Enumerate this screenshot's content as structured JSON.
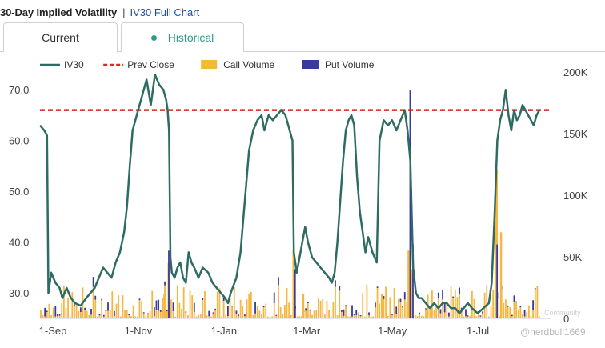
{
  "header": {
    "title": "30-Day Implied Volatility",
    "separator": "|",
    "link": "IV30 Full Chart"
  },
  "tabs": [
    {
      "label": "Current",
      "active": false
    },
    {
      "label": "Historical",
      "active": true
    }
  ],
  "watermark": {
    "handle": "@nerdbull1669",
    "community": "Community"
  },
  "colors": {
    "iv30": "#2e6b62",
    "prev_close": "#e02424",
    "call_volume": "#f4b740",
    "put_volume": "#3a3a9c"
  },
  "chart_data": {
    "type": "line",
    "legend": [
      {
        "key": "iv30",
        "label": "IV30",
        "style": "line"
      },
      {
        "key": "prev",
        "label": "Prev Close",
        "style": "dashed"
      },
      {
        "key": "call",
        "label": "Call Volume",
        "style": "box"
      },
      {
        "key": "put",
        "label": "Put Volume",
        "style": "box"
      }
    ],
    "legend_position": "top-left",
    "x_ticks": [
      {
        "label": "1-Sep",
        "day": 0
      },
      {
        "label": "1-Nov",
        "day": 61
      },
      {
        "label": "1-Jan",
        "day": 122
      },
      {
        "label": "1-Mar",
        "day": 181
      },
      {
        "label": "1-May",
        "day": 242
      },
      {
        "label": "1-Jul",
        "day": 303
      }
    ],
    "x_range": [
      0,
      364
    ],
    "y_left_ticks": [
      30,
      40,
      50,
      60,
      70
    ],
    "y_left_tick_labels": [
      "30.0",
      "40.0",
      "50.0",
      "60.0",
      "70.0"
    ],
    "y_left_range": [
      25,
      73.5
    ],
    "y_right_ticks": [
      0,
      50000,
      100000,
      150000,
      200000
    ],
    "y_right_tick_labels": [
      "0",
      "50K",
      "100K",
      "150K",
      "200K"
    ],
    "y_right_range": [
      0,
      200000
    ],
    "prev_close": 66,
    "iv30": [
      [
        0,
        63
      ],
      [
        3,
        62
      ],
      [
        5,
        61
      ],
      [
        6,
        30
      ],
      [
        8,
        34
      ],
      [
        11,
        32
      ],
      [
        14,
        31
      ],
      [
        16,
        29
      ],
      [
        19,
        31
      ],
      [
        22,
        29
      ],
      [
        25,
        28
      ],
      [
        29,
        27.5
      ],
      [
        33,
        29
      ],
      [
        36,
        30
      ],
      [
        39,
        31
      ],
      [
        42,
        33
      ],
      [
        45,
        35
      ],
      [
        48,
        34
      ],
      [
        51,
        33
      ],
      [
        54,
        36
      ],
      [
        57,
        38
      ],
      [
        60,
        42
      ],
      [
        62,
        47
      ],
      [
        64,
        55
      ],
      [
        66,
        62
      ],
      [
        68,
        64
      ],
      [
        70,
        66
      ],
      [
        72,
        68
      ],
      [
        74,
        70
      ],
      [
        76,
        72
      ],
      [
        79,
        67
      ],
      [
        82,
        73
      ],
      [
        85,
        71
      ],
      [
        88,
        70
      ],
      [
        90,
        68
      ],
      [
        91,
        66
      ],
      [
        92,
        62
      ],
      [
        93,
        37
      ],
      [
        94,
        34
      ],
      [
        96,
        33
      ],
      [
        98,
        35
      ],
      [
        100,
        36
      ],
      [
        102,
        33
      ],
      [
        104,
        32
      ],
      [
        106,
        38
      ],
      [
        108,
        36
      ],
      [
        110,
        35
      ],
      [
        113,
        33
      ],
      [
        116,
        35
      ],
      [
        120,
        34
      ],
      [
        123,
        32
      ],
      [
        126,
        31
      ],
      [
        129,
        30
      ],
      [
        132,
        29
      ],
      [
        134,
        28
      ],
      [
        136,
        30
      ],
      [
        140,
        33
      ],
      [
        143,
        38
      ],
      [
        146,
        48
      ],
      [
        149,
        58
      ],
      [
        152,
        62
      ],
      [
        155,
        64
      ],
      [
        158,
        65
      ],
      [
        160,
        62
      ],
      [
        163,
        65
      ],
      [
        166,
        64
      ],
      [
        169,
        65
      ],
      [
        172,
        66
      ],
      [
        175,
        65
      ],
      [
        178,
        62
      ],
      [
        180,
        60
      ],
      [
        181,
        38
      ],
      [
        183,
        34
      ],
      [
        185,
        37
      ],
      [
        187,
        40
      ],
      [
        189,
        43
      ],
      [
        191,
        40
      ],
      [
        194,
        37
      ],
      [
        197,
        36
      ],
      [
        200,
        35
      ],
      [
        203,
        34
      ],
      [
        206,
        33
      ],
      [
        208,
        32
      ],
      [
        210,
        34
      ],
      [
        212,
        40
      ],
      [
        214,
        48
      ],
      [
        216,
        56
      ],
      [
        218,
        62
      ],
      [
        220,
        64
      ],
      [
        222,
        65
      ],
      [
        224,
        63
      ],
      [
        226,
        53
      ],
      [
        228,
        46
      ],
      [
        230,
        42
      ],
      [
        232,
        38
      ],
      [
        234,
        41
      ],
      [
        237,
        38
      ],
      [
        240,
        36
      ],
      [
        242,
        60
      ],
      [
        245,
        64
      ],
      [
        248,
        63
      ],
      [
        251,
        64
      ],
      [
        254,
        62
      ],
      [
        257,
        64
      ],
      [
        260,
        66
      ],
      [
        262,
        62
      ],
      [
        264,
        56
      ],
      [
        266,
        35
      ],
      [
        268,
        30
      ],
      [
        270,
        29
      ],
      [
        272,
        29
      ],
      [
        275,
        28
      ],
      [
        278,
        27
      ],
      [
        281,
        28
      ],
      [
        284,
        27
      ],
      [
        287,
        28
      ],
      [
        290,
        28
      ],
      [
        293,
        27
      ],
      [
        296,
        27
      ],
      [
        299,
        26
      ],
      [
        302,
        27
      ],
      [
        305,
        28
      ],
      [
        308,
        27
      ],
      [
        312,
        26
      ],
      [
        316,
        27
      ],
      [
        320,
        28
      ],
      [
        322,
        32
      ],
      [
        324,
        45
      ],
      [
        326,
        60
      ],
      [
        328,
        64
      ],
      [
        330,
        66
      ],
      [
        332,
        70
      ],
      [
        334,
        65
      ],
      [
        336,
        62
      ],
      [
        338,
        66
      ],
      [
        340,
        64
      ],
      [
        342,
        65
      ],
      [
        344,
        67
      ],
      [
        346,
        66
      ],
      [
        348,
        65
      ],
      [
        350,
        64
      ],
      [
        352,
        63
      ],
      [
        354,
        65
      ],
      [
        356,
        66
      ]
    ],
    "call_volume_spikes": [
      [
        88,
        20000
      ],
      [
        91,
        45000
      ],
      [
        180,
        55000
      ],
      [
        187,
        20000
      ],
      [
        243,
        20000
      ],
      [
        262,
        55000
      ],
      [
        264,
        40000
      ],
      [
        324,
        100000
      ],
      [
        325,
        120000
      ],
      [
        328,
        70000
      ]
    ],
    "put_volume_spikes": [
      [
        91,
        55000
      ],
      [
        181,
        40000
      ],
      [
        263,
        185000
      ],
      [
        265,
        60000
      ],
      [
        325,
        60000
      ]
    ]
  }
}
